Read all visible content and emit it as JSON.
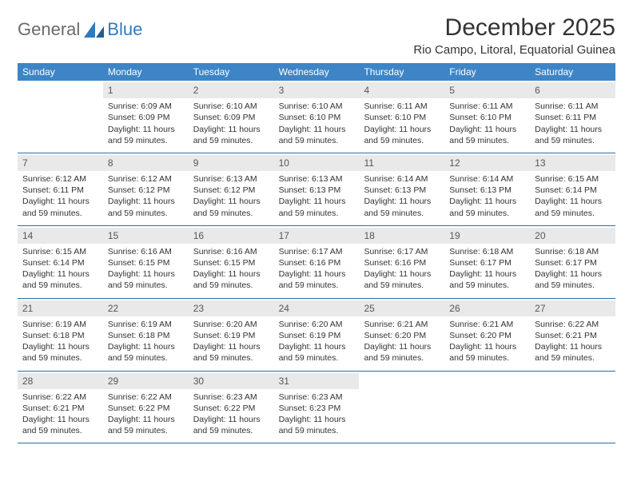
{
  "logo": {
    "word1": "General",
    "word2": "Blue"
  },
  "title": "December 2025",
  "location": "Rio Campo, Litoral, Equatorial Guinea",
  "weekdays": [
    "Sunday",
    "Monday",
    "Tuesday",
    "Wednesday",
    "Thursday",
    "Friday",
    "Saturday"
  ],
  "colors": {
    "header_bg": "#3d85c6",
    "row_border": "#2f6ca3",
    "daynum_bg": "#e9e9e9",
    "text": "#333333",
    "logo_grey": "#6a6a6a",
    "logo_blue": "#2f7bbf"
  },
  "weeks": [
    [
      {
        "empty": true
      },
      {
        "n": "1",
        "sunrise": "Sunrise: 6:09 AM",
        "sunset": "Sunset: 6:09 PM",
        "daylight": "Daylight: 11 hours and 59 minutes."
      },
      {
        "n": "2",
        "sunrise": "Sunrise: 6:10 AM",
        "sunset": "Sunset: 6:09 PM",
        "daylight": "Daylight: 11 hours and 59 minutes."
      },
      {
        "n": "3",
        "sunrise": "Sunrise: 6:10 AM",
        "sunset": "Sunset: 6:10 PM",
        "daylight": "Daylight: 11 hours and 59 minutes."
      },
      {
        "n": "4",
        "sunrise": "Sunrise: 6:11 AM",
        "sunset": "Sunset: 6:10 PM",
        "daylight": "Daylight: 11 hours and 59 minutes."
      },
      {
        "n": "5",
        "sunrise": "Sunrise: 6:11 AM",
        "sunset": "Sunset: 6:10 PM",
        "daylight": "Daylight: 11 hours and 59 minutes."
      },
      {
        "n": "6",
        "sunrise": "Sunrise: 6:11 AM",
        "sunset": "Sunset: 6:11 PM",
        "daylight": "Daylight: 11 hours and 59 minutes."
      }
    ],
    [
      {
        "n": "7",
        "sunrise": "Sunrise: 6:12 AM",
        "sunset": "Sunset: 6:11 PM",
        "daylight": "Daylight: 11 hours and 59 minutes."
      },
      {
        "n": "8",
        "sunrise": "Sunrise: 6:12 AM",
        "sunset": "Sunset: 6:12 PM",
        "daylight": "Daylight: 11 hours and 59 minutes."
      },
      {
        "n": "9",
        "sunrise": "Sunrise: 6:13 AM",
        "sunset": "Sunset: 6:12 PM",
        "daylight": "Daylight: 11 hours and 59 minutes."
      },
      {
        "n": "10",
        "sunrise": "Sunrise: 6:13 AM",
        "sunset": "Sunset: 6:13 PM",
        "daylight": "Daylight: 11 hours and 59 minutes."
      },
      {
        "n": "11",
        "sunrise": "Sunrise: 6:14 AM",
        "sunset": "Sunset: 6:13 PM",
        "daylight": "Daylight: 11 hours and 59 minutes."
      },
      {
        "n": "12",
        "sunrise": "Sunrise: 6:14 AM",
        "sunset": "Sunset: 6:13 PM",
        "daylight": "Daylight: 11 hours and 59 minutes."
      },
      {
        "n": "13",
        "sunrise": "Sunrise: 6:15 AM",
        "sunset": "Sunset: 6:14 PM",
        "daylight": "Daylight: 11 hours and 59 minutes."
      }
    ],
    [
      {
        "n": "14",
        "sunrise": "Sunrise: 6:15 AM",
        "sunset": "Sunset: 6:14 PM",
        "daylight": "Daylight: 11 hours and 59 minutes."
      },
      {
        "n": "15",
        "sunrise": "Sunrise: 6:16 AM",
        "sunset": "Sunset: 6:15 PM",
        "daylight": "Daylight: 11 hours and 59 minutes."
      },
      {
        "n": "16",
        "sunrise": "Sunrise: 6:16 AM",
        "sunset": "Sunset: 6:15 PM",
        "daylight": "Daylight: 11 hours and 59 minutes."
      },
      {
        "n": "17",
        "sunrise": "Sunrise: 6:17 AM",
        "sunset": "Sunset: 6:16 PM",
        "daylight": "Daylight: 11 hours and 59 minutes."
      },
      {
        "n": "18",
        "sunrise": "Sunrise: 6:17 AM",
        "sunset": "Sunset: 6:16 PM",
        "daylight": "Daylight: 11 hours and 59 minutes."
      },
      {
        "n": "19",
        "sunrise": "Sunrise: 6:18 AM",
        "sunset": "Sunset: 6:17 PM",
        "daylight": "Daylight: 11 hours and 59 minutes."
      },
      {
        "n": "20",
        "sunrise": "Sunrise: 6:18 AM",
        "sunset": "Sunset: 6:17 PM",
        "daylight": "Daylight: 11 hours and 59 minutes."
      }
    ],
    [
      {
        "n": "21",
        "sunrise": "Sunrise: 6:19 AM",
        "sunset": "Sunset: 6:18 PM",
        "daylight": "Daylight: 11 hours and 59 minutes."
      },
      {
        "n": "22",
        "sunrise": "Sunrise: 6:19 AM",
        "sunset": "Sunset: 6:18 PM",
        "daylight": "Daylight: 11 hours and 59 minutes."
      },
      {
        "n": "23",
        "sunrise": "Sunrise: 6:20 AM",
        "sunset": "Sunset: 6:19 PM",
        "daylight": "Daylight: 11 hours and 59 minutes."
      },
      {
        "n": "24",
        "sunrise": "Sunrise: 6:20 AM",
        "sunset": "Sunset: 6:19 PM",
        "daylight": "Daylight: 11 hours and 59 minutes."
      },
      {
        "n": "25",
        "sunrise": "Sunrise: 6:21 AM",
        "sunset": "Sunset: 6:20 PM",
        "daylight": "Daylight: 11 hours and 59 minutes."
      },
      {
        "n": "26",
        "sunrise": "Sunrise: 6:21 AM",
        "sunset": "Sunset: 6:20 PM",
        "daylight": "Daylight: 11 hours and 59 minutes."
      },
      {
        "n": "27",
        "sunrise": "Sunrise: 6:22 AM",
        "sunset": "Sunset: 6:21 PM",
        "daylight": "Daylight: 11 hours and 59 minutes."
      }
    ],
    [
      {
        "n": "28",
        "sunrise": "Sunrise: 6:22 AM",
        "sunset": "Sunset: 6:21 PM",
        "daylight": "Daylight: 11 hours and 59 minutes."
      },
      {
        "n": "29",
        "sunrise": "Sunrise: 6:22 AM",
        "sunset": "Sunset: 6:22 PM",
        "daylight": "Daylight: 11 hours and 59 minutes."
      },
      {
        "n": "30",
        "sunrise": "Sunrise: 6:23 AM",
        "sunset": "Sunset: 6:22 PM",
        "daylight": "Daylight: 11 hours and 59 minutes."
      },
      {
        "n": "31",
        "sunrise": "Sunrise: 6:23 AM",
        "sunset": "Sunset: 6:23 PM",
        "daylight": "Daylight: 11 hours and 59 minutes."
      },
      {
        "empty": true
      },
      {
        "empty": true
      },
      {
        "empty": true
      }
    ]
  ]
}
